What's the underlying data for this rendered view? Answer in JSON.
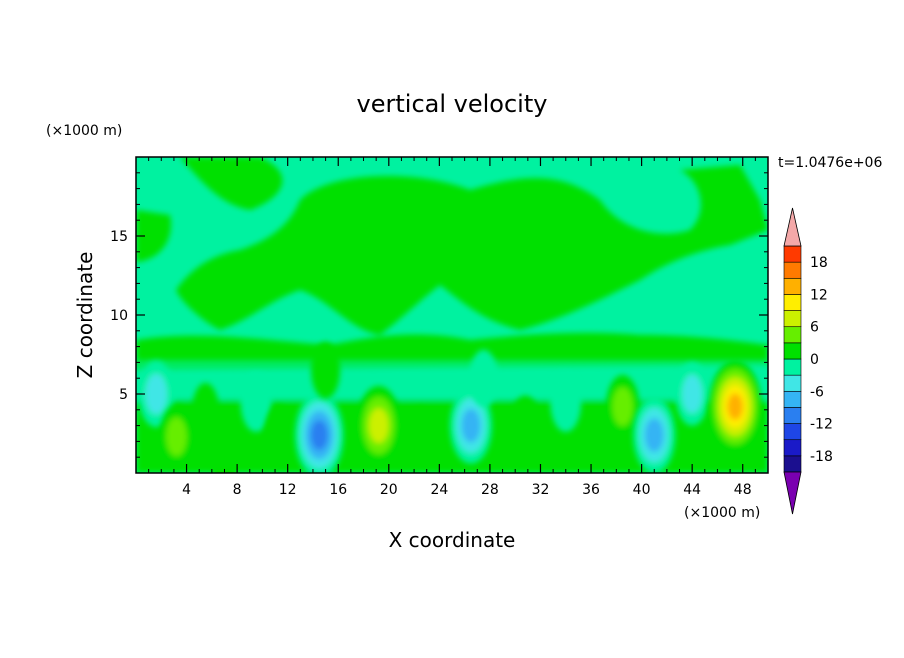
{
  "chart_data": {
    "type": "heatmap",
    "title": "vertical velocity",
    "xlabel": "X coordinate",
    "ylabel": "Z coordinate",
    "x_unit": "(×1000 m)",
    "y_unit": "(×1000 m)",
    "time_label": "t=1.0476e+06",
    "xlim": [
      0,
      50
    ],
    "ylim": [
      0,
      20
    ],
    "x_ticks": [
      4,
      8,
      12,
      16,
      20,
      24,
      28,
      32,
      36,
      40,
      44,
      48
    ],
    "y_ticks": [
      5,
      10,
      15
    ],
    "colorbar": {
      "levels": [
        -21,
        -18,
        -15,
        -12,
        -9,
        -6,
        -3,
        0,
        3,
        6,
        9,
        12,
        15,
        18,
        21
      ],
      "labels": [
        "18",
        "12",
        "6",
        "0",
        "-6",
        "-12",
        "-18"
      ],
      "label_values": [
        18,
        12,
        6,
        0,
        -6,
        -12,
        -18
      ],
      "colors": [
        "#1b0f8f",
        "#1a1ac8",
        "#1e46e6",
        "#2a7ff0",
        "#35b4f4",
        "#40e6e6",
        "#00f2a0",
        "#00e000",
        "#66ee00",
        "#ccf000",
        "#ffee00",
        "#ffb000",
        "#ff7a00",
        "#ff3a00",
        "#e00000"
      ],
      "over_color": "#f4a8a8",
      "under_color": "#7a00b0"
    },
    "blobs": [
      {
        "x": 1.6,
        "z": 5.0,
        "value": -7
      },
      {
        "x": 3.2,
        "z": 2.3,
        "value": 6
      },
      {
        "x": 5.5,
        "z": 4.0,
        "value": 3
      },
      {
        "x": 7.0,
        "z": 1.0,
        "value": 3
      },
      {
        "x": 9.5,
        "z": 4.5,
        "value": -5
      },
      {
        "x": 11.3,
        "z": 2.5,
        "value": 4
      },
      {
        "x": 14.5,
        "z": 2.4,
        "value": -13
      },
      {
        "x": 15.0,
        "z": 6.5,
        "value": 4
      },
      {
        "x": 19.2,
        "z": 3.0,
        "value": 11
      },
      {
        "x": 22.5,
        "z": 2.5,
        "value": 3
      },
      {
        "x": 26.5,
        "z": 3.0,
        "value": -10
      },
      {
        "x": 27.5,
        "z": 6.0,
        "value": -4
      },
      {
        "x": 30.8,
        "z": 3.0,
        "value": 5
      },
      {
        "x": 34.0,
        "z": 4.5,
        "value": -5
      },
      {
        "x": 38.5,
        "z": 4.2,
        "value": 6
      },
      {
        "x": 41.0,
        "z": 2.4,
        "value": -10
      },
      {
        "x": 44.0,
        "z": 5.0,
        "value": -6
      },
      {
        "x": 47.4,
        "z": 4.2,
        "value": 15
      }
    ]
  }
}
